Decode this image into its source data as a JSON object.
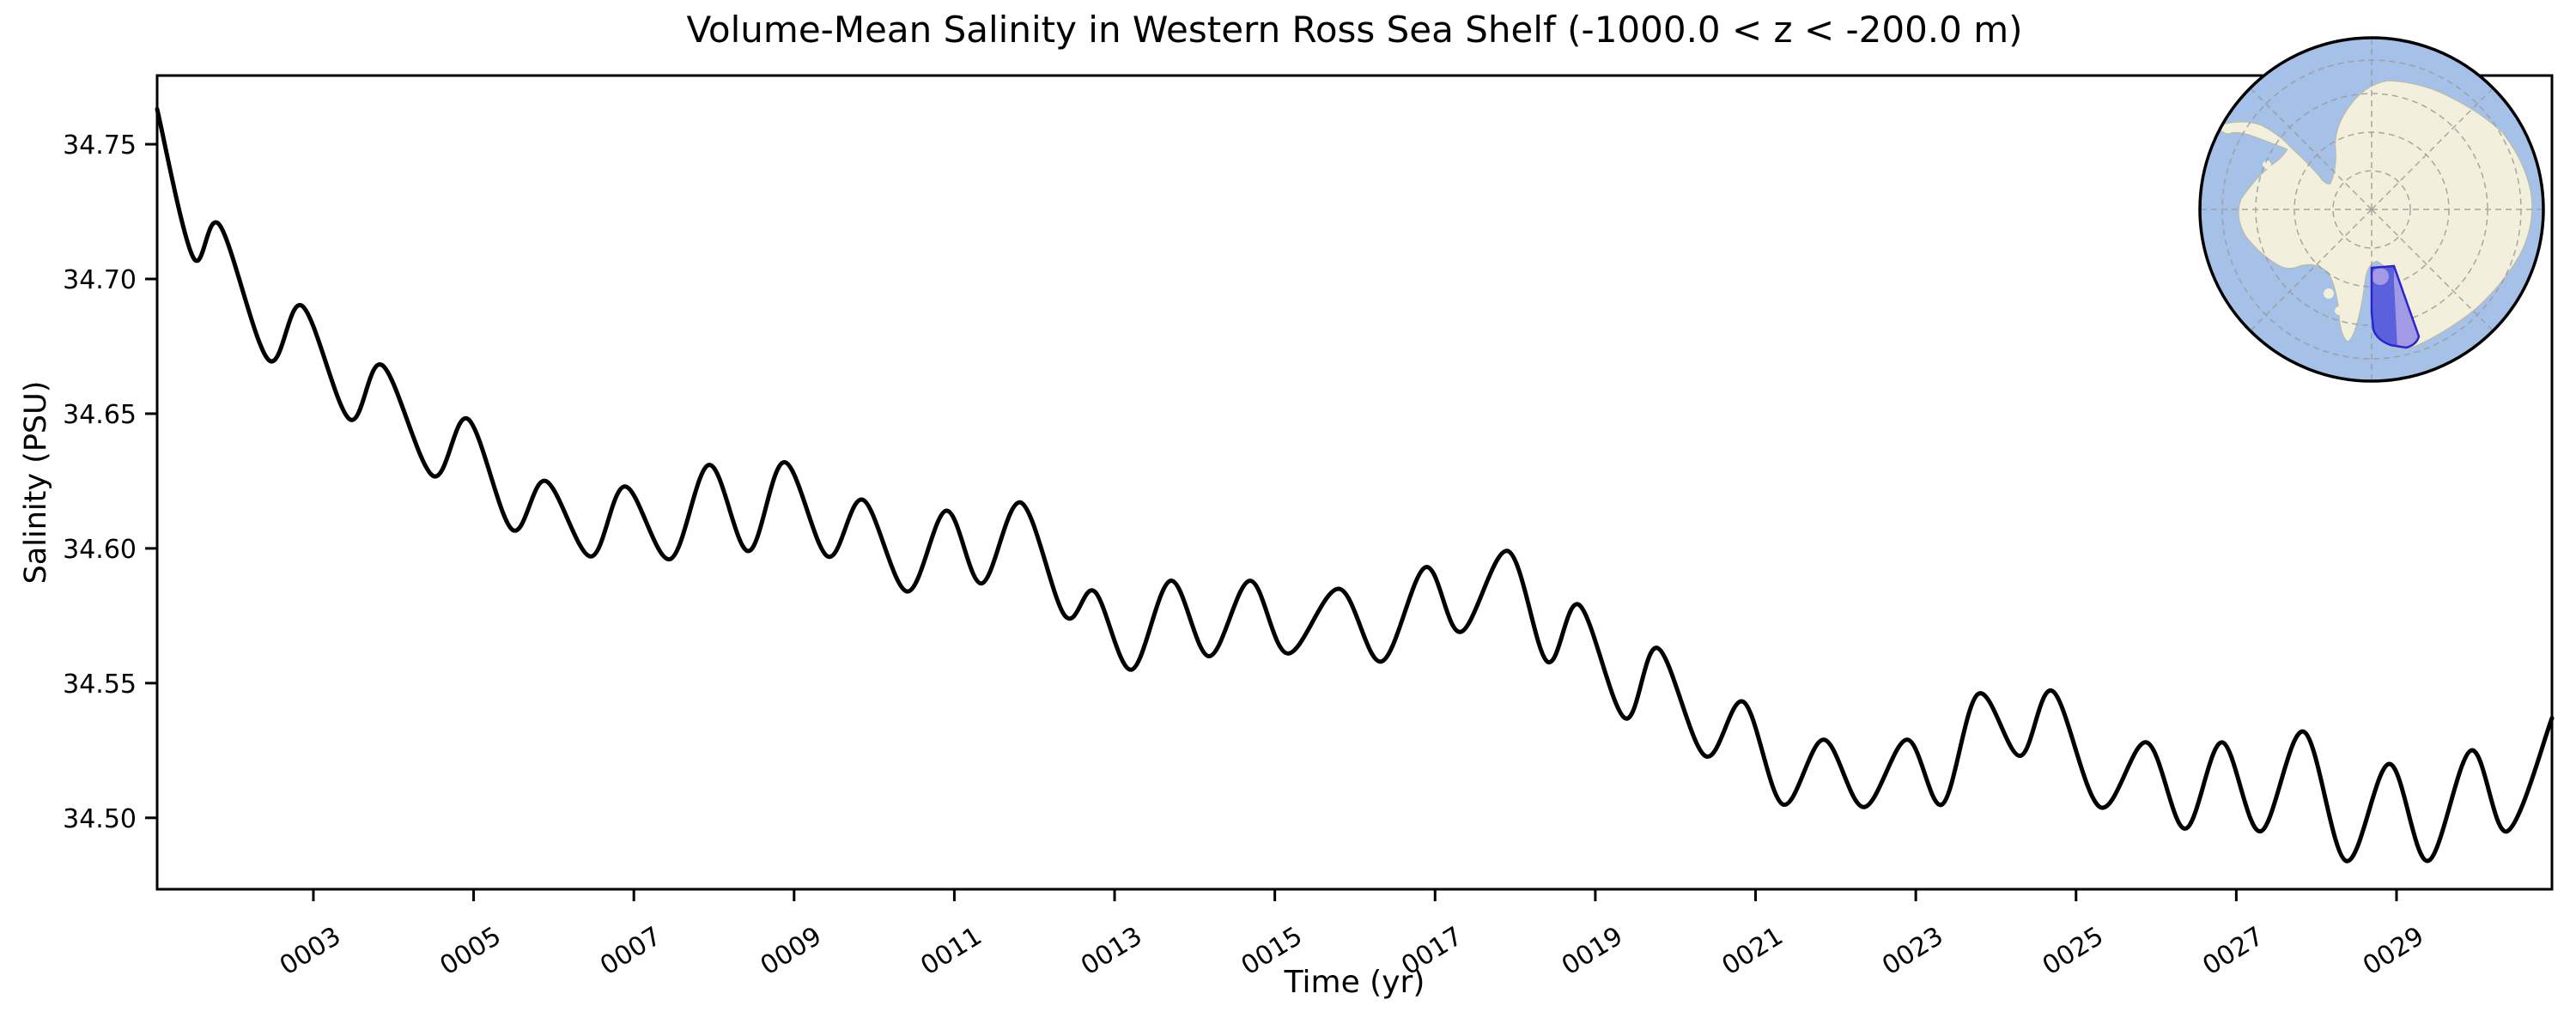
{
  "figure": {
    "background": "#ffffff"
  },
  "chart_data": {
    "type": "line",
    "title": "Volume-Mean Salinity in Western Ross Sea Shelf (-1000.0 < z < -200.0 m)",
    "xlabel": "Time (yr)",
    "ylabel": "Salinity (PSU)",
    "xlim": [
      1.05,
      30.94
    ],
    "ylim": [
      34.4735,
      34.7755
    ],
    "grid": false,
    "legend": "none",
    "line_color": "#000000",
    "line_width": 5,
    "xticks": {
      "values": [
        3,
        5,
        7,
        9,
        11,
        13,
        15,
        17,
        19,
        21,
        23,
        25,
        27,
        29
      ],
      "labels": [
        "0003",
        "0005",
        "0007",
        "0009",
        "0011",
        "0013",
        "0015",
        "0017",
        "0019",
        "0021",
        "0023",
        "0025",
        "0027",
        "0029"
      ]
    },
    "yticks": {
      "values": [
        34.5,
        34.55,
        34.6,
        34.65,
        34.7,
        34.75
      ],
      "labels": [
        "34.50",
        "34.55",
        "34.60",
        "34.65",
        "34.70",
        "34.75"
      ]
    },
    "series": [
      {
        "name": "volume-mean salinity",
        "units": "PSU",
        "points": [
          [
            1.05,
            34.763
          ],
          [
            1.5,
            34.708
          ],
          [
            1.83,
            34.72
          ],
          [
            2.44,
            34.67
          ],
          [
            2.86,
            34.69
          ],
          [
            3.45,
            34.648
          ],
          [
            3.86,
            34.668
          ],
          [
            4.49,
            34.627
          ],
          [
            4.93,
            34.648
          ],
          [
            5.48,
            34.607
          ],
          [
            5.9,
            34.625
          ],
          [
            6.46,
            34.597
          ],
          [
            6.89,
            34.623
          ],
          [
            7.45,
            34.596
          ],
          [
            7.94,
            34.631
          ],
          [
            8.43,
            34.599
          ],
          [
            8.88,
            34.632
          ],
          [
            9.42,
            34.597
          ],
          [
            9.86,
            34.618
          ],
          [
            10.41,
            34.584
          ],
          [
            10.9,
            34.614
          ],
          [
            11.34,
            34.587
          ],
          [
            11.83,
            34.617
          ],
          [
            12.38,
            34.575
          ],
          [
            12.75,
            34.584
          ],
          [
            13.21,
            34.555
          ],
          [
            13.7,
            34.588
          ],
          [
            14.18,
            34.56
          ],
          [
            14.69,
            34.588
          ],
          [
            15.16,
            34.561
          ],
          [
            15.8,
            34.585
          ],
          [
            16.33,
            34.558
          ],
          [
            16.88,
            34.593
          ],
          [
            17.32,
            34.569
          ],
          [
            17.91,
            34.599
          ],
          [
            18.4,
            34.558
          ],
          [
            18.8,
            34.579
          ],
          [
            19.37,
            34.537
          ],
          [
            19.78,
            34.563
          ],
          [
            20.37,
            34.523
          ],
          [
            20.85,
            34.543
          ],
          [
            21.34,
            34.505
          ],
          [
            21.85,
            34.529
          ],
          [
            22.35,
            34.504
          ],
          [
            22.89,
            34.529
          ],
          [
            23.33,
            34.505
          ],
          [
            23.78,
            34.546
          ],
          [
            24.3,
            34.523
          ],
          [
            24.71,
            34.547
          ],
          [
            25.3,
            34.504
          ],
          [
            25.88,
            34.528
          ],
          [
            26.36,
            34.496
          ],
          [
            26.82,
            34.528
          ],
          [
            27.3,
            34.495
          ],
          [
            27.84,
            34.532
          ],
          [
            28.37,
            34.484
          ],
          [
            28.91,
            34.52
          ],
          [
            29.39,
            34.484
          ],
          [
            29.93,
            34.525
          ],
          [
            30.38,
            34.495
          ],
          [
            30.94,
            34.537
          ]
        ]
      }
    ]
  },
  "inset": {
    "description": "South polar stereographic globe of Antarctica with the Western Ross Sea Shelf region highlighted",
    "colors": {
      "ocean": "#a6c1e8",
      "land": "#f2efdc",
      "graticule": "#9a9a9a",
      "region_over_ocean": "#5b60dd",
      "region_over_land": "#a29ae4",
      "region_border": "#2d23cf",
      "globe_border": "#000000"
    }
  }
}
